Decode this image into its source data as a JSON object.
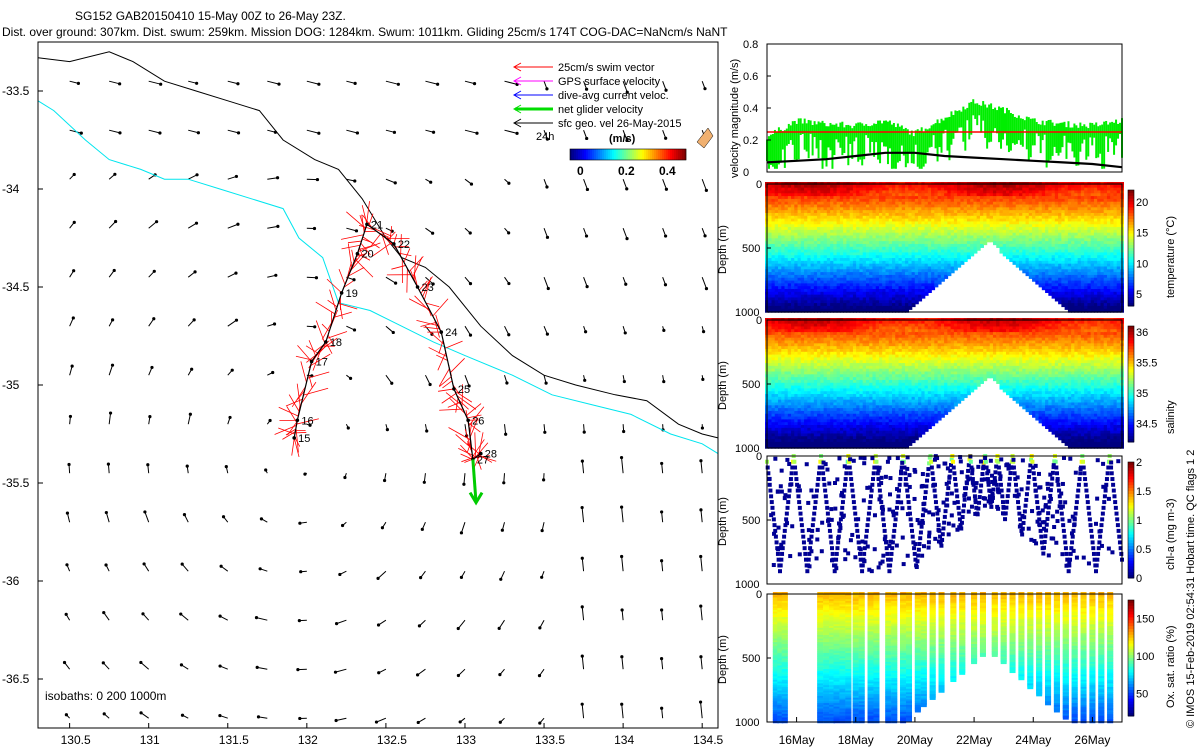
{
  "header": {
    "line1": "SG152 GAB20150410 15-May 00Z to 26-May 23Z.",
    "line2": "Dist. over ground: 307km. Dist. swum: 259km. Mission DOG: 1284km. Swum: 1011km. Gliding 25cm/s 174T COG-DAC=NaNcm/s NaNT"
  },
  "map": {
    "xlim": [
      130.3,
      134.6
    ],
    "ylim": [
      -36.75,
      -33.25
    ],
    "xticks": [
      130.5,
      131,
      131.5,
      132,
      132.5,
      133,
      133.5,
      134,
      134.5
    ],
    "yticks": [
      -33.5,
      -34,
      -34.5,
      -35,
      -35.5,
      -36,
      -36.5
    ],
    "isobaths_label": "isobaths: 0   200  1000m",
    "legend": [
      {
        "label": "25cm/s swim vector",
        "color": "#ff0000"
      },
      {
        "label": "GPS surface velocity",
        "color": "#ff00ff"
      },
      {
        "label": "dive-avg current veloc.",
        "color": "#0000ff"
      },
      {
        "label": "net glider velocity",
        "color": "#00dd00"
      },
      {
        "label": "sfc geo. vel 26-May-2015",
        "color": "#000000"
      }
    ],
    "legend_24h": "24h",
    "colorbar": {
      "title": "(m/s)",
      "ticks": [
        "0",
        "0.2",
        "0.4"
      ]
    },
    "track": [
      {
        "lon": 131.92,
        "lat": -35.27,
        "label": "15"
      },
      {
        "lon": 131.94,
        "lat": -35.18,
        "label": "16"
      },
      {
        "lon": 132.03,
        "lat": -34.88,
        "label": "17"
      },
      {
        "lon": 132.12,
        "lat": -34.78,
        "label": "18"
      },
      {
        "lon": 132.22,
        "lat": -34.53,
        "label": "19"
      },
      {
        "lon": 132.32,
        "lat": -34.33,
        "label": "20"
      },
      {
        "lon": 132.38,
        "lat": -34.18,
        "label": "21"
      },
      {
        "lon": 132.55,
        "lat": -34.28,
        "label": "22"
      },
      {
        "lon": 132.7,
        "lat": -34.5,
        "label": "23"
      },
      {
        "lon": 132.85,
        "lat": -34.73,
        "label": "24"
      },
      {
        "lon": 132.93,
        "lat": -35.02,
        "label": "25"
      },
      {
        "lon": 133.02,
        "lat": -35.18,
        "label": "26"
      },
      {
        "lon": 133.05,
        "lat": -35.38,
        "label": "27"
      },
      {
        "lon": 133.1,
        "lat": -35.35,
        "label": "28"
      }
    ],
    "isobath_200": [
      [
        130.3,
        -33.33
      ],
      [
        130.5,
        -33.35
      ],
      [
        130.75,
        -33.3
      ],
      [
        130.9,
        -33.35
      ],
      [
        131.1,
        -33.45
      ],
      [
        131.3,
        -33.5
      ],
      [
        131.5,
        -33.55
      ],
      [
        131.7,
        -33.6
      ],
      [
        131.85,
        -33.75
      ],
      [
        132.05,
        -33.85
      ],
      [
        132.2,
        -33.9
      ],
      [
        132.35,
        -34.05
      ],
      [
        132.5,
        -34.25
      ],
      [
        132.6,
        -34.35
      ],
      [
        132.75,
        -34.4
      ],
      [
        132.9,
        -34.5
      ],
      [
        133.1,
        -34.7
      ],
      [
        133.3,
        -34.85
      ],
      [
        133.5,
        -34.95
      ],
      [
        133.7,
        -35.0
      ],
      [
        133.95,
        -35.05
      ],
      [
        134.15,
        -35.08
      ],
      [
        134.35,
        -35.2
      ],
      [
        134.5,
        -35.25
      ],
      [
        134.6,
        -35.27
      ]
    ],
    "isobath_1000": [
      [
        130.3,
        -33.55
      ],
      [
        130.4,
        -33.6
      ],
      [
        130.6,
        -33.75
      ],
      [
        130.75,
        -33.85
      ],
      [
        130.95,
        -33.9
      ],
      [
        131.1,
        -33.95
      ],
      [
        131.25,
        -33.95
      ],
      [
        131.45,
        -34.0
      ],
      [
        131.65,
        -34.05
      ],
      [
        131.85,
        -34.1
      ],
      [
        131.95,
        -34.25
      ],
      [
        132.1,
        -34.35
      ],
      [
        132.2,
        -34.58
      ],
      [
        132.4,
        -34.62
      ],
      [
        132.6,
        -34.7
      ],
      [
        132.8,
        -34.78
      ],
      [
        133.0,
        -34.85
      ],
      [
        133.3,
        -34.95
      ],
      [
        133.55,
        -35.05
      ],
      [
        133.8,
        -35.1
      ],
      [
        134.05,
        -35.15
      ],
      [
        134.3,
        -35.25
      ],
      [
        134.5,
        -35.3
      ],
      [
        134.6,
        -35.35
      ]
    ]
  },
  "velocity_panel": {
    "ylabel": "velocity magnitude (m/s)",
    "ylim": [
      0,
      0.8
    ],
    "yticks": [
      "0",
      "0.2",
      "0.4",
      "0.6",
      "0.8"
    ],
    "swim_speed": 0.25
  },
  "sections": [
    {
      "ylabel": "Depth (m)",
      "cblabel": "temperature (°C)",
      "cbticks": [
        "5",
        "10",
        "15",
        "20"
      ],
      "cbmin": 3,
      "cbmax": 22
    },
    {
      "ylabel": "Depth (m)",
      "cblabel": "salinity",
      "cbticks": [
        "34.5",
        "35",
        "35.5",
        "36"
      ],
      "cbmin": 34.2,
      "cbmax": 36.1
    },
    {
      "ylabel": "Depth (m)",
      "cblabel": "chl-a (mg m-3)",
      "cbticks": [
        "0",
        "0.5",
        "1",
        "1.5",
        "2"
      ],
      "cbmin": 0,
      "cbmax": 2
    },
    {
      "ylabel": "Depth (m)",
      "cblabel": "Ox. sat. ratio (%)",
      "cbticks": [
        "50",
        "100",
        "150"
      ],
      "cbmin": 20,
      "cbmax": 175
    }
  ],
  "depth_ticks": [
    "0",
    "500",
    "1000"
  ],
  "time_ticks": [
    "16May",
    "18May",
    "20May",
    "22May",
    "24May",
    "26May"
  ],
  "footer": "© IMOS 15-Feb-2019 02:54:31 Hobart time. QC flags 1 2",
  "chart_data": [
    {
      "type": "scatter",
      "title": "SG152 GAB20150410 15-May 00Z to 26-May 23Z.",
      "xlabel": "",
      "ylabel": "",
      "xlim": [
        130.3,
        134.6
      ],
      "ylim": [
        -36.75,
        -33.25
      ],
      "series": [
        {
          "name": "glider track",
          "x": [
            131.92,
            131.94,
            132.03,
            132.12,
            132.22,
            132.32,
            132.38,
            132.55,
            132.7,
            132.85,
            132.93,
            133.02,
            133.05,
            133.1
          ],
          "y": [
            -35.27,
            -35.18,
            -34.88,
            -34.78,
            -34.53,
            -34.33,
            -34.18,
            -34.28,
            -34.5,
            -34.73,
            -35.02,
            -35.18,
            -35.38,
            -35.35
          ]
        }
      ]
    },
    {
      "type": "line",
      "title": "",
      "xlabel": "",
      "ylabel": "velocity magnitude (m/s)",
      "ylim": [
        0,
        0.8
      ],
      "x": [
        "15May",
        "16May",
        "17May",
        "18May",
        "19May",
        "20May",
        "21May",
        "22May",
        "23May",
        "24May",
        "25May",
        "26May",
        "27May"
      ],
      "series": [
        {
          "name": "net glider velocity",
          "values": [
            0.2,
            0.3,
            0.28,
            0.27,
            0.3,
            0.22,
            0.32,
            0.42,
            0.37,
            0.3,
            0.28,
            0.27,
            0.3
          ]
        },
        {
          "name": "swim speed",
          "values": [
            0.25,
            0.25,
            0.25,
            0.25,
            0.25,
            0.25,
            0.25,
            0.25,
            0.25,
            0.25,
            0.25,
            0.25,
            0.25
          ]
        },
        {
          "name": "sfc geo. vel",
          "values": [
            0.06,
            0.07,
            0.08,
            0.1,
            0.12,
            0.12,
            0.1,
            0.09,
            0.08,
            0.07,
            0.06,
            0.05,
            0.03
          ]
        }
      ]
    }
  ]
}
